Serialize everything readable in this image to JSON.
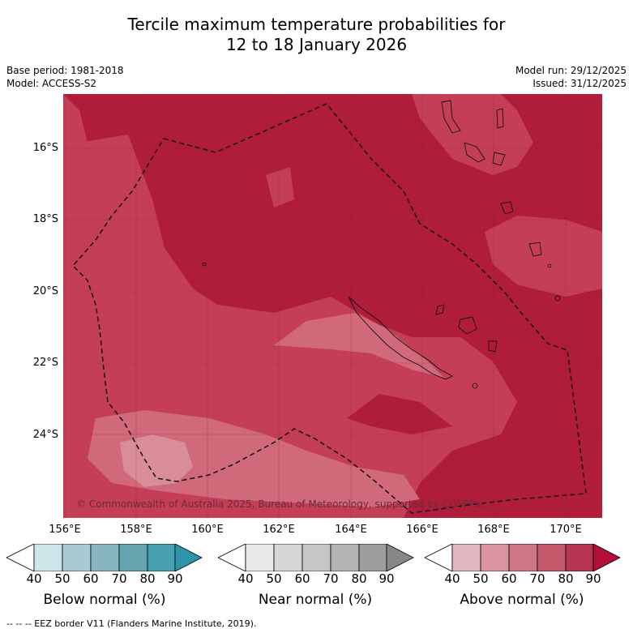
{
  "header": {
    "title_line1": "Tercile maximum temperature probabilities for",
    "title_line2": "12 to 18 January 2026",
    "base_period": "Base period: 1981-2018",
    "model": "Model: ACCESS-S2",
    "model_run": "Model run: 29/12/2025",
    "issued": "Issued: 31/12/2025"
  },
  "map": {
    "lat_labels": [
      "16°S",
      "18°S",
      "20°S",
      "22°S",
      "24°S"
    ],
    "lon_labels": [
      "156°E",
      "158°E",
      "160°E",
      "162°E",
      "164°E",
      "166°E",
      "168°E",
      "170°E"
    ],
    "copyright": "© Commonwealth of Australia 2025, Bureau of Meteorology, supported by COSPPac",
    "colors": {
      "dark": "#b01d3a",
      "mid": "#c43e58",
      "light": "#d06a7a",
      "lightest": "#d88d98"
    }
  },
  "legend": {
    "ticks": [
      "40",
      "50",
      "60",
      "70",
      "80",
      "90"
    ],
    "below": {
      "title": "Below normal (%)",
      "colors": [
        "#ffffff",
        "#cde4e9",
        "#a8cad1",
        "#88b6c0",
        "#66a4b0",
        "#46a0b0",
        "#2e95a8"
      ]
    },
    "near": {
      "title": "Near normal (%)",
      "colors": [
        "#ffffff",
        "#e8e8e8",
        "#d6d6d6",
        "#c6c6c6",
        "#b3b3b3",
        "#9c9c9c",
        "#888888"
      ]
    },
    "above": {
      "title": "Above normal (%)",
      "colors": [
        "#ffffff",
        "#e1b8c0",
        "#d9949f",
        "#cf7784",
        "#c4596b",
        "#b73450",
        "#b01038"
      ]
    }
  },
  "footer": "--  --  -- EEZ border V11 (Flanders Marine Institute, 2019)."
}
